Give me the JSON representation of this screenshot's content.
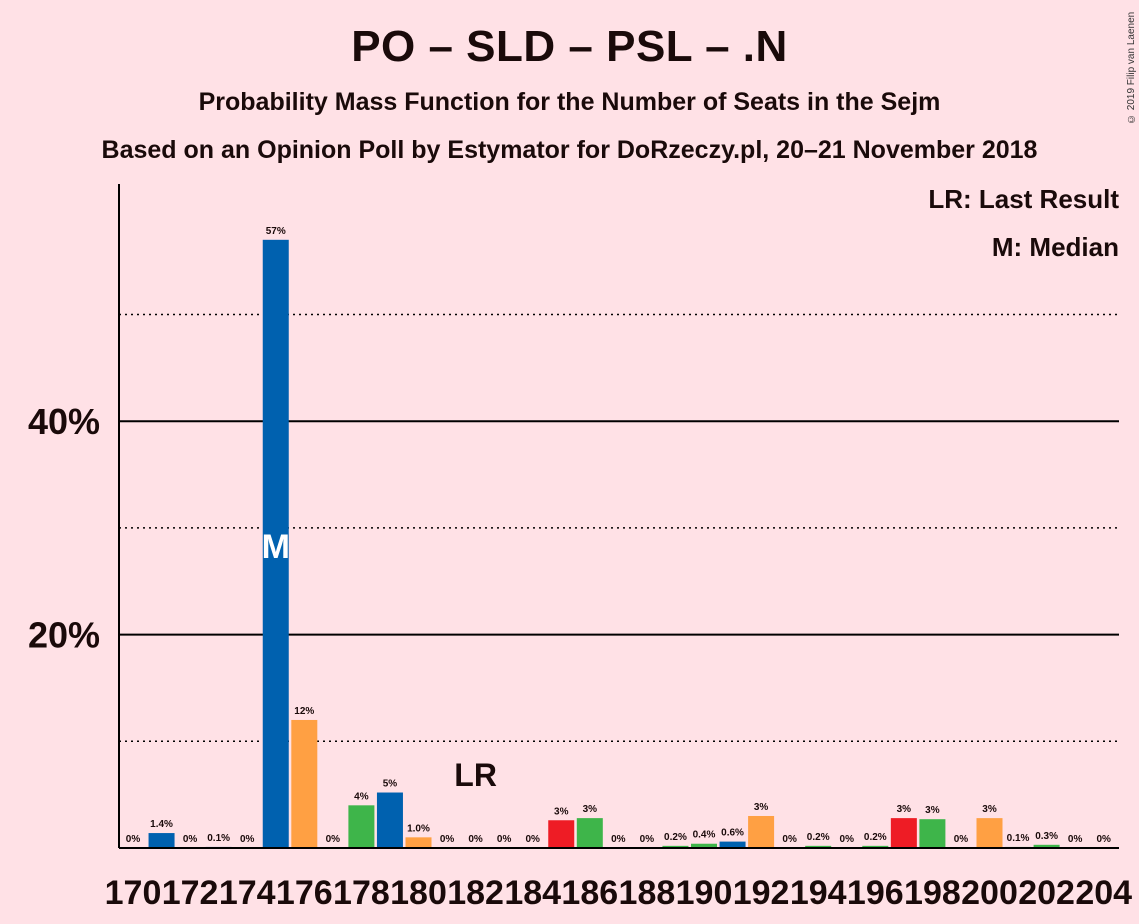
{
  "chart_data": {
    "type": "bar",
    "title": "PO – SLD – PSL – .N",
    "subtitle": "Probability Mass Function for the Number of Seats in the Sejm",
    "subtitle2": "Based on an Opinion Poll by Estymator for DoRzeczy.pl, 20–21 November 2018",
    "copyright": "© 2019 Filip van Laenen",
    "legend": {
      "last_result": "LR: Last Result",
      "median": "M: Median",
      "placement": "top-right"
    },
    "x_tick_labels": [
      "170",
      "172",
      "174",
      "176",
      "178",
      "180",
      "182",
      "184",
      "186",
      "188",
      "190",
      "192",
      "194",
      "196",
      "198",
      "200",
      "202",
      "204"
    ],
    "y_tick_labels": [
      "20%",
      "40%"
    ],
    "ylim": [
      0,
      62
    ],
    "major_gridlines": [
      20,
      40
    ],
    "minor_gridlines": [
      10,
      30,
      50
    ],
    "median_seat": 175,
    "median_marker": "M",
    "last_result_seat": 182,
    "last_result_marker": "LR",
    "colors": {
      "blue": "#0061AF",
      "orange": "#FFA043",
      "green": "#3EB54A",
      "red": "#EE1C25"
    },
    "bars": [
      {
        "seat": 170,
        "value": 0,
        "label": "0%",
        "color": "blue"
      },
      {
        "seat": 171,
        "value": 1.4,
        "label": "1.4%",
        "color": "blue"
      },
      {
        "seat": 172,
        "value": 0,
        "label": "0%",
        "color": "blue"
      },
      {
        "seat": 173,
        "value": 0.1,
        "label": "0.1%",
        "color": "blue"
      },
      {
        "seat": 174,
        "value": 0,
        "label": "0%",
        "color": "blue"
      },
      {
        "seat": 175,
        "value": 57,
        "label": "57%",
        "color": "blue"
      },
      {
        "seat": 176,
        "value": 12,
        "label": "12%",
        "color": "orange"
      },
      {
        "seat": 177,
        "value": 0,
        "label": "0%",
        "color": "green"
      },
      {
        "seat": 178,
        "value": 4,
        "label": "4%",
        "color": "green"
      },
      {
        "seat": 179,
        "value": 5.2,
        "label": "5%",
        "color": "blue"
      },
      {
        "seat": 180,
        "value": 1.0,
        "label": "1.0%",
        "color": "orange"
      },
      {
        "seat": 181,
        "value": 0,
        "label": "0%",
        "color": "green"
      },
      {
        "seat": 182,
        "value": 0,
        "label": "0%",
        "color": "green"
      },
      {
        "seat": 183,
        "value": 0,
        "label": "0%",
        "color": "green"
      },
      {
        "seat": 184,
        "value": 0,
        "label": "0%",
        "color": "green"
      },
      {
        "seat": 185,
        "value": 2.6,
        "label": "3%",
        "color": "red"
      },
      {
        "seat": 186,
        "value": 2.8,
        "label": "3%",
        "color": "green"
      },
      {
        "seat": 187,
        "value": 0,
        "label": "0%",
        "color": "green"
      },
      {
        "seat": 188,
        "value": 0,
        "label": "0%",
        "color": "green"
      },
      {
        "seat": 189,
        "value": 0.2,
        "label": "0.2%",
        "color": "green"
      },
      {
        "seat": 190,
        "value": 0.4,
        "label": "0.4%",
        "color": "green"
      },
      {
        "seat": 191,
        "value": 0.6,
        "label": "0.6%",
        "color": "blue"
      },
      {
        "seat": 192,
        "value": 3.0,
        "label": "3%",
        "color": "orange"
      },
      {
        "seat": 193,
        "value": 0,
        "label": "0%",
        "color": "green"
      },
      {
        "seat": 194,
        "value": 0.2,
        "label": "0.2%",
        "color": "green"
      },
      {
        "seat": 195,
        "value": 0,
        "label": "0%",
        "color": "green"
      },
      {
        "seat": 196,
        "value": 0.2,
        "label": "0.2%",
        "color": "green"
      },
      {
        "seat": 197,
        "value": 2.8,
        "label": "3%",
        "color": "red"
      },
      {
        "seat": 198,
        "value": 2.7,
        "label": "3%",
        "color": "green"
      },
      {
        "seat": 199,
        "value": 0,
        "label": "0%",
        "color": "green"
      },
      {
        "seat": 200,
        "value": 2.8,
        "label": "3%",
        "color": "orange"
      },
      {
        "seat": 201,
        "value": 0.1,
        "label": "0.1%",
        "color": "green"
      },
      {
        "seat": 202,
        "value": 0.3,
        "label": "0.3%",
        "color": "green"
      },
      {
        "seat": 203,
        "value": 0,
        "label": "0%",
        "color": "green"
      },
      {
        "seat": 204,
        "value": 0,
        "label": "0%",
        "color": "green"
      }
    ]
  }
}
